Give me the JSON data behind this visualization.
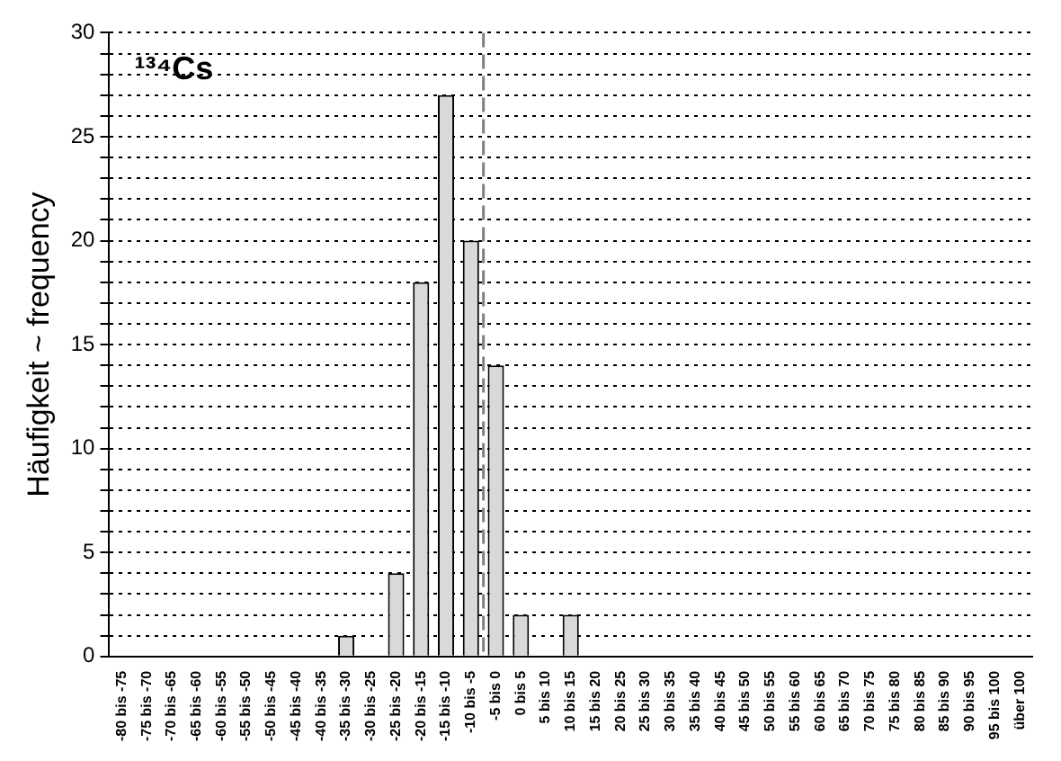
{
  "chart_data": {
    "type": "bar",
    "categories": [
      "-80 bis -75",
      "-75 bis -70",
      "-70 bis -65",
      "-65 bis -60",
      "-60 bis -55",
      "-55 bis -50",
      "-50 bis -45",
      "-45 bis -40",
      "-40 bis -35",
      "-35 bis -30",
      "-30 bis -25",
      "-25 bis -20",
      "-20 bis -15",
      "-15 bis -10",
      "-10 bis -5",
      "-5 bis 0",
      "0 bis 5",
      "5 bis 10",
      "10 bis 15",
      "15 bis 20",
      "20 bis 25",
      "25 bis 30",
      "30 bis 35",
      "35 bis 40",
      "40 bis 45",
      "45 bis 50",
      "50 bis 55",
      "55 bis 60",
      "60 bis 65",
      "65 bis 70",
      "70 bis 75",
      "75 bis 80",
      "80 bis 85",
      "85 bis 90",
      "90 bis 95",
      "95 bis 100",
      "über 100"
    ],
    "values": [
      0,
      0,
      0,
      0,
      0,
      0,
      0,
      0,
      0,
      1,
      0,
      4,
      18,
      27,
      20,
      14,
      2,
      0,
      2,
      0,
      0,
      0,
      0,
      0,
      0,
      0,
      0,
      0,
      0,
      0,
      0,
      0,
      0,
      0,
      0,
      0,
      0
    ],
    "color": "#d9d9d9",
    "ylabel": "Häufigkeit ~ frequency",
    "annotations": [
      "¹³⁴Cs"
    ],
    "ylim": [
      0,
      30
    ],
    "yticks": [
      0,
      {
        "value": 1,
        "label": null
      },
      {
        "value": 2,
        "label": null
      },
      {
        "value": 3,
        "label": null
      },
      {
        "value": 4,
        "label": null
      },
      5,
      {
        "value": 6,
        "label": null
      },
      {
        "value": 7,
        "label": null
      },
      {
        "value": 8,
        "label": null
      },
      {
        "value": 9,
        "label": null
      },
      10,
      {
        "value": 11,
        "label": null
      },
      {
        "value": 12,
        "label": null
      },
      {
        "value": 13,
        "label": null
      },
      {
        "value": 14,
        "label": null
      },
      15,
      {
        "value": 16,
        "label": null
      },
      {
        "value": 17,
        "label": null
      },
      {
        "value": 18,
        "label": null
      },
      {
        "value": 19,
        "label": null
      },
      20,
      {
        "value": 21,
        "label": null
      },
      {
        "value": 22,
        "label": null
      },
      {
        "value": 23,
        "label": null
      },
      {
        "value": 24,
        "label": null
      },
      25,
      {
        "value": 26,
        "label": null
      },
      {
        "value": 27,
        "label": null
      },
      {
        "value": 28,
        "label": null
      },
      {
        "value": 29,
        "label": null
      },
      30
    ],
    "grid": "y",
    "legend": false,
    "ref_lines": [
      {
        "axis": "x",
        "value": "-5 bis 0",
        "color": "#808080",
        "line_style": "dashed"
      }
    ]
  }
}
